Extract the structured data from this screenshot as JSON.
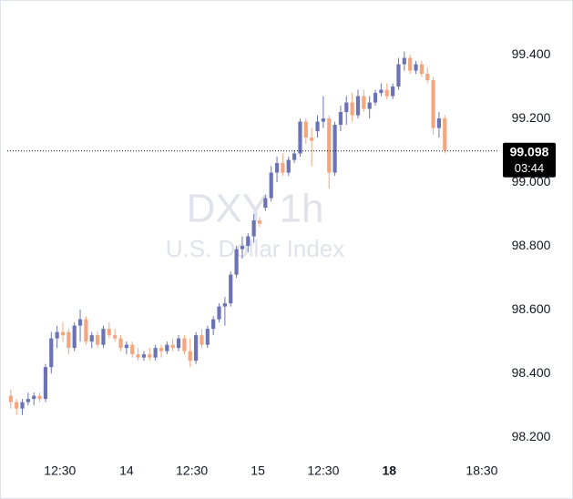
{
  "chart_data": {
    "type": "candlestick",
    "watermark_title": "DXY 1h",
    "watermark_subtitle": "U.S. Dollar Index",
    "up_color": "#6b73b5",
    "down_color": "#f4a67f",
    "open": [
      98.33,
      98.31,
      98.29,
      98.31,
      98.32,
      98.33,
      98.32,
      98.42,
      98.51,
      98.53,
      98.53,
      98.48,
      98.55,
      98.57,
      98.5,
      98.52,
      98.49,
      98.54,
      98.52,
      98.51,
      98.48,
      98.49,
      98.46,
      98.45,
      98.46,
      98.45,
      98.48,
      98.47,
      98.49,
      98.48,
      98.51,
      98.47,
      98.44,
      98.52,
      98.49,
      98.54,
      98.57,
      98.61,
      98.62,
      98.71,
      98.79,
      98.8,
      98.83,
      98.88,
      98.92,
      98.95,
      99.03,
      99.06,
      99.03,
      99.07,
      99.09,
      99.19,
      99.14,
      99.16,
      99.19,
      99.2,
      99.03,
      99.18,
      99.22,
      99.25,
      99.21,
      99.27,
      99.23,
      99.25,
      99.28,
      99.29,
      99.27,
      99.3,
      99.37,
      99.39,
      99.35,
      99.37,
      99.34,
      99.32,
      99.17,
      99.2
    ],
    "high": [
      98.35,
      98.32,
      98.32,
      98.34,
      98.34,
      98.34,
      98.43,
      98.53,
      98.55,
      98.56,
      98.54,
      98.56,
      98.6,
      98.58,
      98.53,
      98.53,
      98.55,
      98.56,
      98.54,
      98.52,
      98.5,
      98.5,
      98.48,
      98.47,
      98.48,
      98.49,
      98.49,
      98.5,
      98.51,
      98.52,
      98.52,
      98.51,
      98.53,
      98.54,
      98.55,
      98.58,
      98.62,
      98.64,
      98.72,
      98.8,
      98.83,
      98.84,
      98.9,
      98.89,
      98.96,
      99.05,
      99.08,
      99.09,
      99.08,
      99.1,
      99.2,
      99.2,
      99.17,
      99.21,
      99.27,
      99.21,
      99.19,
      99.24,
      99.27,
      99.28,
      99.29,
      99.29,
      99.27,
      99.29,
      99.31,
      99.31,
      99.31,
      99.39,
      99.41,
      99.4,
      99.38,
      99.38,
      99.36,
      99.33,
      99.22,
      99.21
    ],
    "low": [
      98.29,
      98.27,
      98.27,
      98.3,
      98.3,
      98.31,
      98.31,
      98.4,
      98.48,
      98.5,
      98.46,
      98.47,
      98.5,
      98.49,
      98.48,
      98.48,
      98.48,
      98.51,
      98.5,
      98.47,
      98.46,
      98.45,
      98.44,
      98.44,
      98.44,
      98.44,
      98.45,
      98.46,
      98.47,
      98.47,
      98.46,
      98.42,
      98.43,
      98.48,
      98.48,
      98.52,
      98.56,
      98.55,
      98.61,
      98.7,
      98.76,
      98.78,
      98.81,
      98.86,
      98.91,
      98.94,
      99.0,
      99.02,
      99.02,
      99.06,
      99.08,
      99.12,
      99.05,
      99.14,
      99.17,
      98.98,
      99.02,
      99.16,
      99.18,
      99.19,
      99.2,
      99.22,
      99.2,
      99.24,
      99.27,
      99.26,
      99.26,
      99.29,
      99.35,
      99.34,
      99.34,
      99.33,
      99.31,
      99.15,
      99.14,
      99.09
    ],
    "close": [
      98.31,
      98.29,
      98.31,
      98.32,
      98.33,
      98.32,
      98.42,
      98.51,
      98.53,
      98.52,
      98.48,
      98.55,
      98.57,
      98.5,
      98.52,
      98.49,
      98.54,
      98.52,
      98.51,
      98.48,
      98.49,
      98.46,
      98.45,
      98.46,
      98.45,
      98.48,
      98.47,
      98.49,
      98.48,
      98.51,
      98.47,
      98.44,
      98.52,
      98.49,
      98.54,
      98.57,
      98.61,
      98.62,
      98.71,
      98.79,
      98.8,
      98.83,
      98.88,
      98.87,
      98.95,
      99.03,
      99.06,
      99.03,
      99.07,
      99.09,
      99.19,
      99.14,
      99.13,
      99.19,
      99.2,
      99.03,
      99.18,
      99.22,
      99.25,
      99.21,
      99.27,
      99.23,
      99.25,
      99.28,
      99.29,
      99.27,
      99.3,
      99.37,
      99.39,
      99.35,
      99.37,
      99.34,
      99.32,
      99.17,
      99.2,
      99.1
    ],
    "xlim": [
      -0.6,
      84.4
    ],
    "xticks": [
      {
        "value": 8.5,
        "label": "12:30"
      },
      {
        "value": 20,
        "label": "14"
      },
      {
        "value": 31.3,
        "label": "12:30"
      },
      {
        "value": 42.7,
        "label": "15"
      },
      {
        "value": 54,
        "label": "12:30"
      },
      {
        "value": 65.4,
        "label": "18"
      },
      {
        "value": 81.4,
        "label": "18:30"
      }
    ],
    "ylim": [
      98.129,
      99.543
    ],
    "yticks": [
      {
        "value": 98.2,
        "label": "98.200"
      },
      {
        "value": 98.4,
        "label": "98.400"
      },
      {
        "value": 98.6,
        "label": "98.600"
      },
      {
        "value": 98.8,
        "label": "98.800"
      },
      {
        "value": 99.0,
        "label": "99.000"
      },
      {
        "value": 99.2,
        "label": "99.200"
      },
      {
        "value": 99.4,
        "label": "99.400"
      }
    ],
    "last_price": 99.098,
    "countdown": "03:44"
  }
}
